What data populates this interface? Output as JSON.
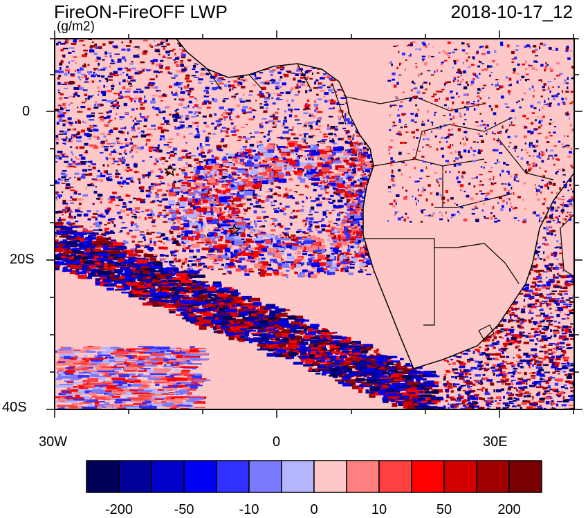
{
  "title": "FireON-FireOFF LWP",
  "date": "2018-10-17_12",
  "units": "(g/m2)",
  "lat_labels": [
    "0",
    "20S",
    "40S"
  ],
  "lon_labels": [
    "30W",
    "0",
    "30E"
  ],
  "colorbar": {
    "colors": [
      "#00005a",
      "#00009a",
      "#0000c8",
      "#0000f5",
      "#3030ff",
      "#7a7aff",
      "#b4b4ff",
      "#ffc8c8",
      "#ff8080",
      "#ff4040",
      "#ff0000",
      "#d20000",
      "#a00000",
      "#780000"
    ],
    "tick_labels": [
      "-200",
      "-50",
      "-10",
      "0",
      "10",
      "50",
      "200"
    ]
  },
  "map": {
    "background": "#ffc8c8",
    "land_color": "#ffc8c8",
    "coastline_color": "#000000",
    "markers": [
      "star",
      "star"
    ]
  }
}
